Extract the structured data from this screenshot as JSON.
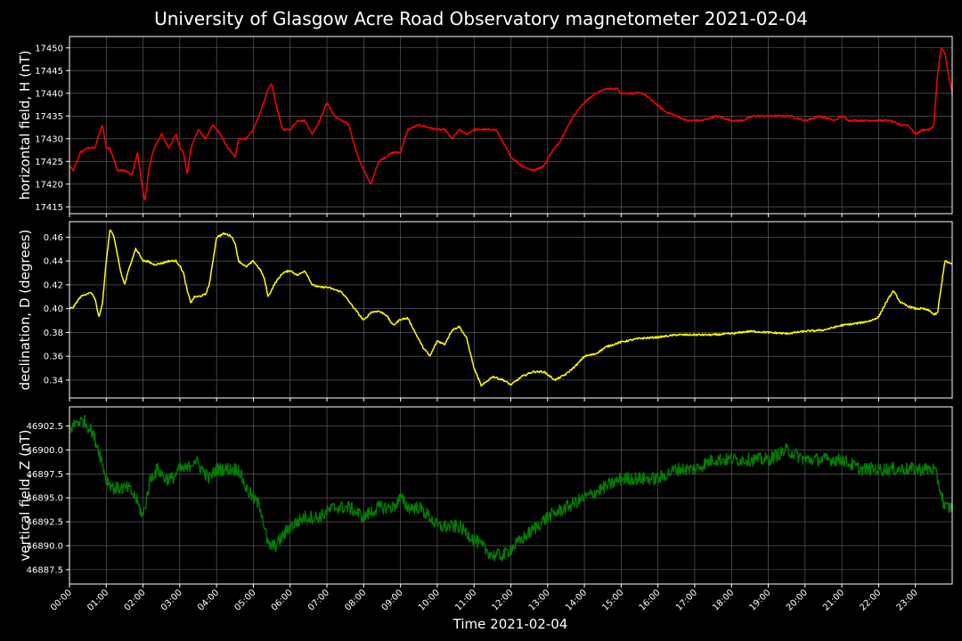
{
  "chart_data": {
    "type": "line",
    "title": "University of Glasgow Acre Road Observatory magnetometer 2021-02-04",
    "xlabel": "Time 2021-02-04",
    "x_unit": "hours",
    "x_range": [
      0,
      24
    ],
    "x_ticks": [
      "00:00",
      "01:00",
      "02:00",
      "03:00",
      "04:00",
      "05:00",
      "06:00",
      "07:00",
      "08:00",
      "09:00",
      "10:00",
      "11:00",
      "12:00",
      "13:00",
      "14:00",
      "15:00",
      "16:00",
      "17:00",
      "18:00",
      "19:00",
      "20:00",
      "21:00",
      "22:00",
      "23:00"
    ],
    "grid": true,
    "panels": [
      {
        "ylabel": "horizontal field, H (nT)",
        "color": "#ff0000",
        "ylim": [
          17413.5,
          17452.5
        ],
        "yticks": [
          17415,
          17420,
          17425,
          17430,
          17435,
          17440,
          17445,
          17450
        ],
        "tick_labels": [
          "17415",
          "17420",
          "17425",
          "17430",
          "17435",
          "17440",
          "17445",
          "17450"
        ],
        "noise": 0.4,
        "x": [
          0,
          0.1,
          0.3,
          0.5,
          0.7,
          0.8,
          0.9,
          1.0,
          1.1,
          1.3,
          1.5,
          1.7,
          1.85,
          1.95,
          2.05,
          2.15,
          2.3,
          2.5,
          2.7,
          2.9,
          3.0,
          3.1,
          3.2,
          3.3,
          3.5,
          3.7,
          3.9,
          4.1,
          4.3,
          4.5,
          4.6,
          4.8,
          5.0,
          5.2,
          5.4,
          5.5,
          5.6,
          5.8,
          6.0,
          6.2,
          6.4,
          6.6,
          6.8,
          7.0,
          7.2,
          7.4,
          7.6,
          7.8,
          8.0,
          8.2,
          8.4,
          8.6,
          8.8,
          9.0,
          9.2,
          9.5,
          10.0,
          10.2,
          10.4,
          10.6,
          10.8,
          11.0,
          11.3,
          11.6,
          12.0,
          12.3,
          12.6,
          12.9,
          13.1,
          13.3,
          13.5,
          13.7,
          14.0,
          14.3,
          14.6,
          14.9,
          15.0,
          15.3,
          15.6,
          15.9,
          16.2,
          16.5,
          16.8,
          17.2,
          17.6,
          18.0,
          18.3,
          18.6,
          18.9,
          19.2,
          19.6,
          20.0,
          20.4,
          20.8,
          21.0,
          21.2,
          21.5,
          21.8,
          22.0,
          22.3,
          22.6,
          22.8,
          23.0,
          23.2,
          23.4,
          23.5,
          23.6,
          23.7,
          23.8,
          23.9,
          24.0
        ],
        "y": [
          17424,
          17423,
          17427,
          17428,
          17428,
          17431,
          17433,
          17428,
          17428,
          17423,
          17423,
          17422,
          17427,
          17421,
          17416,
          17423,
          17428,
          17431,
          17428,
          17431,
          17428,
          17427,
          17422,
          17428,
          17432,
          17430,
          17433,
          17431,
          17428,
          17426,
          17430,
          17430,
          17432,
          17436,
          17441,
          17442,
          17438,
          17432,
          17432,
          17434,
          17434,
          17431,
          17434,
          17438,
          17435,
          17434,
          17433,
          17427,
          17423,
          17420,
          17425,
          17426,
          17427,
          17427,
          17432,
          17433,
          17432,
          17432,
          17430,
          17432,
          17431,
          17432,
          17432,
          17432,
          17426,
          17424,
          17423,
          17424,
          17427,
          17429,
          17432,
          17435,
          17438,
          17440,
          17441,
          17441,
          17440,
          17440,
          17440,
          17438,
          17436,
          17435,
          17434,
          17434,
          17435,
          17434,
          17434,
          17435,
          17435,
          17435,
          17435,
          17434,
          17435,
          17434,
          17435,
          17434,
          17434,
          17434,
          17434,
          17434,
          17433,
          17433,
          17431,
          17432,
          17432,
          17433,
          17444,
          17450,
          17449,
          17444,
          17440
        ]
      },
      {
        "ylabel": "declination, D (degrees)",
        "color": "#ffff00",
        "ylim": [
          0.325,
          0.473
        ],
        "yticks": [
          0.34,
          0.36,
          0.38,
          0.4,
          0.42,
          0.44,
          0.46
        ],
        "tick_labels": [
          "0.34",
          "0.36",
          "0.38",
          "0.40",
          "0.42",
          "0.44",
          "0.46"
        ],
        "noise": 0.0015,
        "x": [
          0,
          0.1,
          0.3,
          0.5,
          0.6,
          0.7,
          0.8,
          0.9,
          1.0,
          1.1,
          1.2,
          1.4,
          1.5,
          1.6,
          1.8,
          1.9,
          2.0,
          2.1,
          2.3,
          2.5,
          2.7,
          2.9,
          3.0,
          3.1,
          3.2,
          3.3,
          3.4,
          3.5,
          3.7,
          3.8,
          3.9,
          4.0,
          4.2,
          4.4,
          4.5,
          4.6,
          4.8,
          5.0,
          5.2,
          5.3,
          5.4,
          5.6,
          5.8,
          6.0,
          6.2,
          6.4,
          6.6,
          6.8,
          7.0,
          7.4,
          7.8,
          8.0,
          8.2,
          8.4,
          8.6,
          8.8,
          9.0,
          9.2,
          9.4,
          9.6,
          9.8,
          10.0,
          10.2,
          10.4,
          10.6,
          10.8,
          11.0,
          11.2,
          11.5,
          11.8,
          12.0,
          12.3,
          12.6,
          12.9,
          13.2,
          13.5,
          13.8,
          14.0,
          14.3,
          14.6,
          15.0,
          15.5,
          16.0,
          16.5,
          17.0,
          17.5,
          18.0,
          18.5,
          19.0,
          19.5,
          20.0,
          20.5,
          21.0,
          21.5,
          21.8,
          22.0,
          22.2,
          22.4,
          22.6,
          22.8,
          23.0,
          23.2,
          23.4,
          23.5,
          23.6,
          23.8,
          24.0
        ],
        "y": [
          0.4,
          0.401,
          0.41,
          0.413,
          0.413,
          0.408,
          0.392,
          0.405,
          0.44,
          0.466,
          0.462,
          0.43,
          0.42,
          0.432,
          0.45,
          0.446,
          0.44,
          0.44,
          0.437,
          0.438,
          0.44,
          0.44,
          0.436,
          0.43,
          0.415,
          0.405,
          0.41,
          0.41,
          0.412,
          0.42,
          0.44,
          0.46,
          0.463,
          0.461,
          0.455,
          0.44,
          0.435,
          0.44,
          0.432,
          0.425,
          0.41,
          0.422,
          0.43,
          0.432,
          0.428,
          0.432,
          0.42,
          0.418,
          0.418,
          0.414,
          0.398,
          0.39,
          0.397,
          0.398,
          0.395,
          0.386,
          0.391,
          0.392,
          0.38,
          0.368,
          0.36,
          0.373,
          0.37,
          0.382,
          0.385,
          0.375,
          0.35,
          0.335,
          0.343,
          0.34,
          0.336,
          0.343,
          0.347,
          0.347,
          0.34,
          0.345,
          0.353,
          0.36,
          0.362,
          0.368,
          0.372,
          0.375,
          0.376,
          0.378,
          0.378,
          0.378,
          0.379,
          0.381,
          0.38,
          0.379,
          0.381,
          0.382,
          0.386,
          0.388,
          0.39,
          0.393,
          0.405,
          0.415,
          0.405,
          0.402,
          0.4,
          0.4,
          0.398,
          0.395,
          0.396,
          0.44,
          0.437
        ]
      },
      {
        "ylabel": "vertical field, Z (nT)",
        "color": "#008000",
        "ylim": [
          46886,
          46904.5
        ],
        "yticks": [
          46887.5,
          46890.0,
          46892.5,
          46895.0,
          46897.5,
          46900.0,
          46902.5
        ],
        "tick_labels": [
          "46887.5",
          "46890.0",
          "46892.5",
          "46895.0",
          "46897.5",
          "46900.0",
          "46902.5"
        ],
        "noise": 1.4,
        "x": [
          0,
          0.2,
          0.4,
          0.6,
          0.8,
          1.0,
          1.2,
          1.4,
          1.6,
          1.8,
          2.0,
          2.2,
          2.4,
          2.6,
          2.8,
          3.0,
          3.2,
          3.4,
          3.6,
          3.8,
          4.0,
          4.2,
          4.4,
          4.6,
          4.8,
          5.0,
          5.2,
          5.4,
          5.6,
          5.8,
          6.0,
          6.4,
          6.8,
          7.2,
          7.6,
          8.0,
          8.4,
          8.8,
          9.0,
          9.2,
          9.5,
          9.8,
          10.0,
          10.3,
          10.6,
          10.9,
          11.2,
          11.5,
          11.8,
          12.1,
          12.4,
          12.7,
          13.0,
          13.5,
          14.0,
          14.5,
          15.0,
          15.5,
          16.0,
          16.5,
          17.0,
          17.5,
          18.0,
          18.5,
          19.0,
          19.5,
          20.0,
          20.5,
          21.0,
          21.5,
          22.0,
          22.5,
          23.0,
          23.5,
          23.6,
          23.8,
          24.0
        ],
        "y": [
          46902,
          46903,
          46903,
          46902,
          46900,
          46897,
          46896,
          46896,
          46896,
          46895,
          46893,
          46897,
          46898,
          46897,
          46897,
          46898,
          46898,
          46899,
          46898,
          46897,
          46898,
          46898,
          46898,
          46898,
          46896,
          46895,
          46894,
          46890,
          46890,
          46891,
          46892,
          46893,
          46893,
          46894,
          46894,
          46893,
          46894,
          46894,
          46895,
          46894,
          46894,
          46893,
          46892,
          46892,
          46892,
          46891,
          46890,
          46889,
          46889,
          46890,
          46891,
          46892,
          46893,
          46894,
          46895,
          46896,
          46897,
          46897,
          46897,
          46898,
          46898,
          46899,
          46899,
          46899,
          46899,
          46900,
          46899,
          46899,
          46899,
          46898,
          46898,
          46898,
          46898,
          46898,
          46897,
          46894,
          46894
        ]
      }
    ]
  }
}
